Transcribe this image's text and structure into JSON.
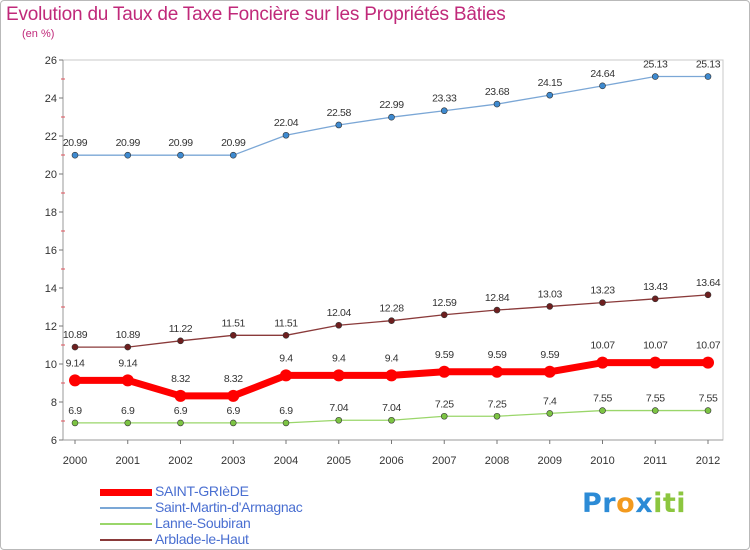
{
  "title": "Evolution du Taux de Taxe Foncière sur les Propriétés Bâties",
  "subtitle": "(en %)",
  "brand": {
    "letters": [
      {
        "ch": "P",
        "color": "#2c8bd6"
      },
      {
        "ch": "r",
        "color": "#2c8bd6"
      },
      {
        "ch": "o",
        "color": "#f39a1e"
      },
      {
        "ch": "x",
        "color": "#2c8bd6"
      },
      {
        "ch": "i",
        "color": "#8cc63f"
      },
      {
        "ch": "t",
        "color": "#8cc63f"
      },
      {
        "ch": "i",
        "color": "#8cc63f"
      }
    ]
  },
  "chart_data": {
    "type": "line",
    "title": "Evolution du Taux de Taxe Foncière sur les Propriétés Bâties",
    "ylabel": "(en %)",
    "xlabel": "",
    "x": [
      "2000",
      "2001",
      "2002",
      "2003",
      "2004",
      "2005",
      "2006",
      "2007",
      "2008",
      "2009",
      "2010",
      "2011",
      "2012"
    ],
    "ylim": [
      6,
      26
    ],
    "yticks": [
      "6",
      "8",
      "10",
      "12",
      "14",
      "16",
      "18",
      "20",
      "22",
      "24",
      "26"
    ],
    "grid": false,
    "legend_position": "bottom-left",
    "series": [
      {
        "name": "SAINT-GRIèDE",
        "color": "#ff0000",
        "width": 7,
        "values": [
          9.14,
          9.14,
          8.32,
          8.32,
          9.4,
          9.4,
          9.4,
          9.59,
          9.59,
          9.59,
          10.07,
          10.07,
          10.07
        ],
        "labels": [
          "9.14",
          "9.14",
          "8.32",
          "8.32",
          "9.4",
          "9.4",
          "9.4",
          "9.59",
          "9.59",
          "9.59",
          "10.07",
          "10.07",
          "10.07"
        ]
      },
      {
        "name": "Saint-Martin-d'Armagnac",
        "color": "#7ba7d6",
        "marker": "#3e8ad0",
        "width": 1.3,
        "values": [
          20.99,
          20.99,
          20.99,
          20.99,
          22.04,
          22.58,
          22.99,
          23.33,
          23.68,
          24.15,
          24.64,
          25.13,
          25.13
        ],
        "labels": [
          "20.99",
          "20.99",
          "20.99",
          "20.99",
          "22.04",
          "22.58",
          "22.99",
          "23.33",
          "23.68",
          "24.15",
          "24.64",
          "25.13",
          "25.13"
        ]
      },
      {
        "name": "Lanne-Soubiran",
        "color": "#9ad66a",
        "marker": "#7cc443",
        "width": 1.3,
        "values": [
          6.9,
          6.9,
          6.9,
          6.9,
          6.9,
          7.04,
          7.04,
          7.25,
          7.25,
          7.4,
          7.55,
          7.55,
          7.55
        ],
        "labels": [
          "6.9",
          "6.9",
          "6.9",
          "6.9",
          "6.9",
          "7.04",
          "7.04",
          "7.25",
          "7.25",
          "7.4",
          "7.55",
          "7.55",
          "7.55"
        ]
      },
      {
        "name": "Arblade-le-Haut",
        "color": "#8a3a3a",
        "marker": "#6e1f1f",
        "width": 1.3,
        "values": [
          10.89,
          10.89,
          11.22,
          11.51,
          11.51,
          12.04,
          12.28,
          12.59,
          12.84,
          13.03,
          13.23,
          13.43,
          13.64
        ],
        "labels": [
          "10.89",
          "10.89",
          "11.22",
          "11.51",
          "11.51",
          "12.04",
          "12.28",
          "12.59",
          "12.84",
          "13.03",
          "13.23",
          "13.43",
          "13.64"
        ]
      }
    ]
  }
}
